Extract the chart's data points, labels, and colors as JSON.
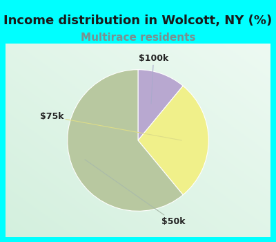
{
  "title": "Income distribution in Wolcott, NY (%)",
  "subtitle": "Multirace residents",
  "title_fontsize": 13,
  "subtitle_fontsize": 11,
  "slices": [
    {
      "label": "$100k",
      "value": 11,
      "color": "#b8a8d0"
    },
    {
      "label": "$75k",
      "value": 28,
      "color": "#f0f08a"
    },
    {
      "label": "$50k",
      "value": 61,
      "color": "#b8c8a0"
    }
  ],
  "label_fontsize": 9,
  "title_color": "#1a1a1a",
  "subtitle_color": "#7a9090",
  "bg_cyan": "#00ffff",
  "chart_bg_topleft": [
    0.82,
    0.96,
    0.92
  ],
  "chart_bg_bottomright": [
    0.92,
    0.98,
    0.96
  ]
}
